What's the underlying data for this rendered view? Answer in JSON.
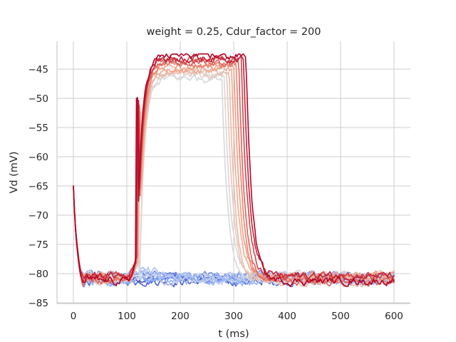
{
  "chart_data": {
    "type": "line",
    "title": "weight = 0.25, Cdur_factor = 200",
    "xlabel": "t (ms)",
    "ylabel": "Vd (mV)",
    "xlim": [
      -35,
      630
    ],
    "ylim": [
      -85,
      -40.5
    ],
    "xticks": [
      0,
      100,
      200,
      300,
      400,
      500,
      600
    ],
    "yticks": [
      -85,
      -80,
      -75,
      -70,
      -65,
      -60,
      -55,
      -50,
      -45
    ],
    "grid": true,
    "colormap": "coolwarm",
    "n_traces": 20,
    "sample_traces": [
      {
        "color": "#3b4cc0",
        "kind": "subthreshold",
        "x": [
          0,
          10,
          20,
          40,
          80,
          120,
          200,
          300,
          400,
          500,
          600
        ],
        "y": [
          -65,
          -74,
          -79,
          -81,
          -81.5,
          -81,
          -81.5,
          -81,
          -81,
          -80.5,
          -81
        ]
      },
      {
        "color": "#b40426",
        "kind": "spike",
        "x": [
          0,
          10,
          20,
          40,
          80,
          110,
          118,
          121,
          125,
          140,
          170,
          200,
          250,
          280,
          300,
          320,
          340,
          380,
          420,
          500,
          600
        ],
        "y": [
          -65,
          -75,
          -80,
          -81.5,
          -82.5,
          -81,
          -70,
          -50,
          -62,
          -47,
          -43.5,
          -43,
          -43,
          -44,
          -46,
          -60,
          -76,
          -79,
          -80,
          -81,
          -81
        ]
      }
    ]
  }
}
